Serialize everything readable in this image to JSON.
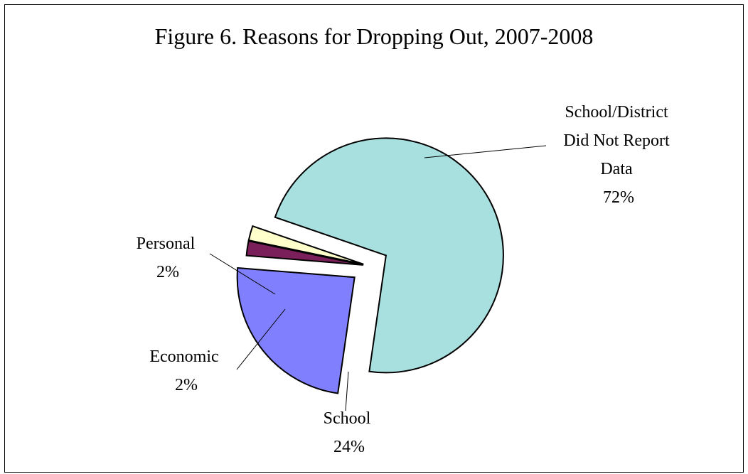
{
  "chart_data": {
    "type": "pie",
    "title": "Figure 6.  Reasons for Dropping Out, 2007-2008",
    "slices": [
      {
        "label_lines": [
          "School/District",
          "Did Not Report",
          "Data"
        ],
        "pct_label": "72%",
        "value": 72,
        "color": "#a8e0e0"
      },
      {
        "label_lines": [
          "School"
        ],
        "pct_label": "24%",
        "value": 24,
        "color": "#8080ff"
      },
      {
        "label_lines": [
          "Economic"
        ],
        "pct_label": "2%",
        "value": 2,
        "color": "#7a1f5a"
      },
      {
        "label_lines": [
          "Personal"
        ],
        "pct_label": "2%",
        "value": 2,
        "color": "#ffffcc"
      }
    ]
  }
}
